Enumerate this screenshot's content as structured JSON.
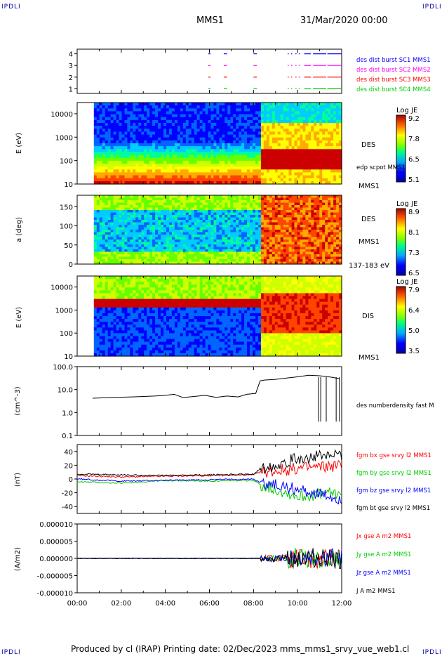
{
  "corner_label": "IPDLI",
  "header": {
    "spacecraft": "MMS1",
    "datetime": "31/Mar/2020 00:00"
  },
  "footer": {
    "text": "Produced by cl (IRAP)   Printing date: 02/Dec/2023   mms_mms1_srvy_vue_web1.cl"
  },
  "colors": {
    "blue": "#0000ff",
    "red": "#ff0000",
    "magenta": "#ff00ff",
    "green": "#00cc00",
    "black": "#000000"
  },
  "chart_data": [
    {
      "type": "scatter",
      "panel": "burst-availability",
      "yticks": [
        "1",
        "2",
        "3",
        "4"
      ],
      "xlim": [
        "00:00",
        "12:00"
      ],
      "legend_placement": "right",
      "series": [
        {
          "name": "des dist burst SC1 MMS1",
          "y": 4,
          "color": "#0000ff"
        },
        {
          "name": "des dist burst SC2 MMS2",
          "y": 3,
          "color": "#ff00ff"
        },
        {
          "name": "des dist burst SC3 MMS3",
          "y": 2,
          "color": "#ff0000"
        },
        {
          "name": "des dist burst SC4 MMS4",
          "y": 1,
          "color": "#00cc00"
        }
      ],
      "intervals_hours": [
        [
          5.95,
          6.05
        ],
        [
          6.65,
          6.8
        ],
        [
          8.0,
          8.15
        ],
        [
          9.55,
          9.6
        ],
        [
          9.7,
          9.75
        ],
        [
          9.9,
          9.95
        ],
        [
          10.05,
          10.1
        ],
        [
          10.3,
          10.6
        ],
        [
          10.7,
          11.3
        ],
        [
          11.35,
          12.0
        ]
      ]
    },
    {
      "type": "heatmap",
      "panel": "des-energy",
      "ylabel": "E (eV)",
      "yscale": "log",
      "yticks": [
        "10",
        "100",
        "1000",
        "10000"
      ],
      "ylim": [
        10,
        30000
      ],
      "right_labels": [
        "DES",
        "edp scpot MMS1",
        "MMS1"
      ],
      "colorbar": {
        "title": "Log JE",
        "ticks": [
          "9.2",
          "7.8",
          "6.5",
          "5.1"
        ],
        "range": [
          5.1,
          9.2
        ]
      },
      "data_start_hour": 0.7,
      "transition_hour": 8.3
    },
    {
      "type": "heatmap",
      "panel": "des-pitch-angle",
      "ylabel": "a (deg)",
      "yticks": [
        "0",
        "50",
        "100",
        "150"
      ],
      "ylim": [
        0,
        180
      ],
      "right_labels": [
        "DES",
        "MMS1",
        "137-183 eV"
      ],
      "colorbar": {
        "title": "Log JE",
        "ticks": [
          "8.9",
          "8.1",
          "7.3",
          "6.5"
        ],
        "range": [
          6.5,
          8.9
        ]
      },
      "data_start_hour": 0.7,
      "transition_hour": 8.3
    },
    {
      "type": "heatmap",
      "panel": "dis-energy",
      "ylabel": "E (eV)",
      "yscale": "log",
      "yticks": [
        "10",
        "100",
        "1000",
        "10000"
      ],
      "ylim": [
        10,
        30000
      ],
      "right_labels": [
        "DIS",
        "MMS1"
      ],
      "colorbar": {
        "title": "Log JE",
        "ticks": [
          "7.9",
          "6.4",
          "5.0",
          "3.5"
        ],
        "range": [
          3.5,
          7.9
        ]
      },
      "data_start_hour": 0.7,
      "transition_hour": 8.3
    },
    {
      "type": "line",
      "panel": "density",
      "ylabel": "(cm^-3)",
      "yscale": "log",
      "yticks": [
        "0.1",
        "1.0",
        "10.0",
        "100.0"
      ],
      "ylim": [
        0.1,
        100
      ],
      "series": [
        {
          "name": "des numberdensity fast M",
          "color": "#000000",
          "x": [
            0.7,
            1.5,
            2.5,
            3.5,
            4.0,
            4.4,
            4.8,
            5.3,
            5.8,
            6.3,
            6.8,
            7.3,
            7.7,
            8.1,
            8.3,
            8.5,
            9.0,
            9.5,
            10.0,
            10.5,
            11.0,
            11.5,
            11.9
          ],
          "y": [
            4.2,
            4.5,
            4.8,
            5.2,
            5.6,
            6.2,
            4.5,
            5.0,
            5.6,
            4.6,
            5.2,
            4.8,
            6.2,
            6.8,
            24,
            26,
            28,
            32,
            36,
            42,
            40,
            35,
            30
          ]
        }
      ]
    },
    {
      "type": "line",
      "panel": "magnetic-field",
      "ylabel": "(nT)",
      "yticks": [
        "-40",
        "-20",
        "0",
        "20",
        "40"
      ],
      "ylim": [
        -50,
        50
      ],
      "series": [
        {
          "name": "fgm bx gse srvy l2 MMS1",
          "color": "#ff0000",
          "x": [
            0,
            2,
            4,
            6,
            8,
            8.3,
            10,
            12
          ],
          "y": [
            5,
            3,
            4,
            5,
            6,
            10,
            15,
            20
          ]
        },
        {
          "name": "fgm by gse srvy l2 MMS1",
          "color": "#00cc00",
          "x": [
            0,
            2,
            4,
            6,
            8,
            8.3,
            10,
            12
          ],
          "y": [
            -4,
            -6,
            -2,
            -3,
            -2,
            -8,
            -25,
            -20
          ]
        },
        {
          "name": "fgm bz gse srvy l2 MMS1",
          "color": "#0000ff",
          "x": [
            0,
            2,
            4,
            6,
            8,
            8.3,
            10,
            12
          ],
          "y": [
            0,
            -3,
            -2,
            -1,
            0,
            -5,
            -15,
            -30
          ]
        },
        {
          "name": "fgm bt gse srvy l2 MMS1",
          "color": "#000000",
          "x": [
            0,
            2,
            4,
            6,
            8,
            8.3,
            10,
            12
          ],
          "y": [
            7,
            6,
            5,
            6,
            7,
            15,
            30,
            35
          ]
        }
      ]
    },
    {
      "type": "line",
      "panel": "current-density",
      "ylabel": "(A/m2)",
      "yticks": [
        "-0.000010",
        "-0.000005",
        "0.000000",
        "0.000005",
        "0.000010"
      ],
      "ylim": [
        -1e-05,
        1e-05
      ],
      "series": [
        {
          "name": "Jx gse A m2 MMS1",
          "color": "#ff0000"
        },
        {
          "name": "Jy gse A m2 MMS1",
          "color": "#00cc00"
        },
        {
          "name": "Jz gse A m2 MMS1",
          "color": "#0000ff"
        },
        {
          "name": "J A m2 MMS1",
          "color": "#000000"
        }
      ]
    }
  ],
  "xaxis": {
    "ticks": [
      "00:00",
      "02:00",
      "04:00",
      "06:00",
      "08:00",
      "10:00",
      "12:00"
    ],
    "range_hours": [
      0,
      12
    ]
  }
}
